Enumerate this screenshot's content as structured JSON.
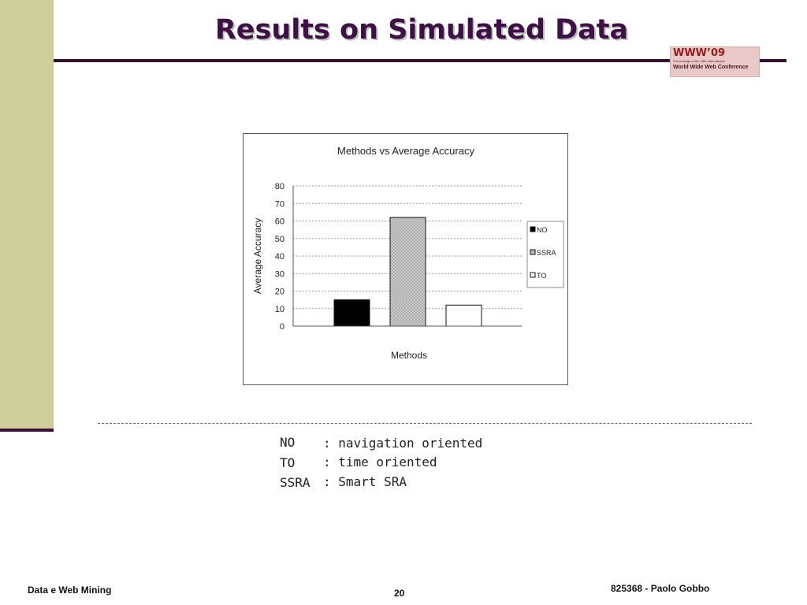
{
  "slide": {
    "title": "Results on Simulated Data",
    "footer_left": "Data e Web Mining",
    "footer_center": "20",
    "footer_right": "825368 - Paolo Gobbo"
  },
  "logo": {
    "line1": "WWW’09",
    "line2": "Proceedings of the 18th International",
    "line3": "World Wide Web Conference",
    "color": "#9b1b1b"
  },
  "chart_data": {
    "type": "bar",
    "title": "Methods vs Average Accuracy",
    "xlabel": "Methods",
    "ylabel": "Average Accuracy",
    "ylim": [
      0,
      80
    ],
    "yticks": [
      0,
      10,
      20,
      30,
      40,
      50,
      60,
      70,
      80
    ],
    "grid": true,
    "legend_position": "right",
    "series": [
      {
        "name": "NO",
        "value": 15,
        "color": "#000000",
        "pattern": "solid"
      },
      {
        "name": "SSRA",
        "value": 62,
        "color": "#c4c4c4",
        "pattern": "dotted"
      },
      {
        "name": "TO",
        "value": 12,
        "color": "#ffffff",
        "pattern": "solid"
      }
    ]
  },
  "abbreviations": [
    {
      "term": "NO",
      "definition": ": navigation oriented"
    },
    {
      "term": "TO",
      "definition": ": time oriented"
    },
    {
      "term": "SSRA",
      "definition": ": Smart SRA"
    }
  ]
}
